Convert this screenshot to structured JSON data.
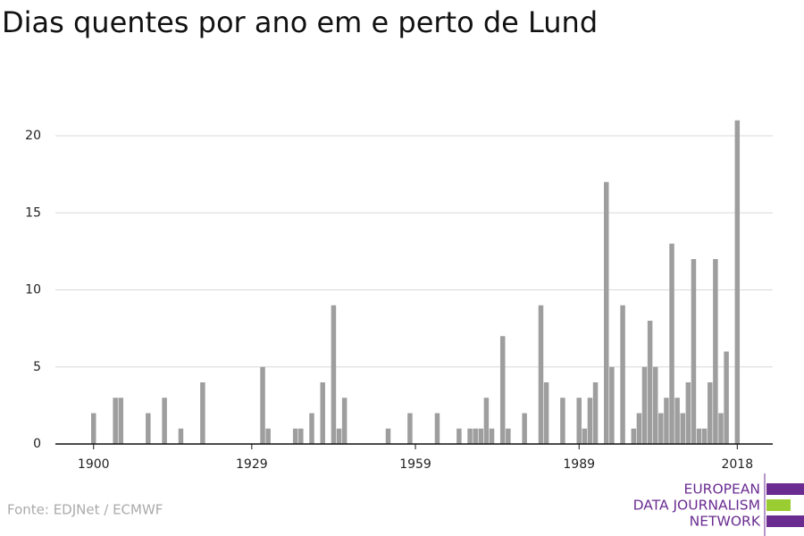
{
  "chart_data": {
    "type": "bar",
    "title": "Dias quentes por ano em e perto de Lund",
    "source": "Fonte: EDJNet / ECMWF",
    "logo": [
      "EUROPEAN",
      "DATA JOURNALISM",
      "NETWORK"
    ],
    "color": "#9e9e9e",
    "x": [
      1900,
      1904,
      1905,
      1910,
      1913,
      1916,
      1920,
      1931,
      1932,
      1937,
      1938,
      1940,
      1942,
      1944,
      1945,
      1946,
      1954,
      1958,
      1963,
      1967,
      1969,
      1970,
      1971,
      1972,
      1973,
      1975,
      1976,
      1979,
      1982,
      1983,
      1986,
      1989,
      1990,
      1991,
      1992,
      1994,
      1995,
      1997,
      1999,
      2000,
      2001,
      2002,
      2003,
      2004,
      2005,
      2006,
      2007,
      2008,
      2009,
      2010,
      2011,
      2012,
      2013,
      2014,
      2015,
      2016,
      2018
    ],
    "values": [
      2,
      3,
      3,
      2,
      3,
      1,
      4,
      5,
      1,
      1,
      1,
      2,
      4,
      9,
      1,
      3,
      1,
      2,
      2,
      1,
      1,
      1,
      1,
      3,
      1,
      7,
      1,
      2,
      9,
      4,
      3,
      3,
      1,
      3,
      4,
      17,
      5,
      9,
      1,
      2,
      5,
      8,
      5,
      2,
      3,
      13,
      3,
      2,
      4,
      12,
      1,
      1,
      4,
      12,
      2,
      6,
      21
    ],
    "xlim": [
      1893,
      2024.5
    ],
    "xticks": [
      1900,
      1929,
      1959,
      1989,
      2018
    ],
    "ylim": [
      0,
      22
    ],
    "yticks": [
      0,
      5,
      10,
      15,
      20
    ],
    "grid": true
  }
}
